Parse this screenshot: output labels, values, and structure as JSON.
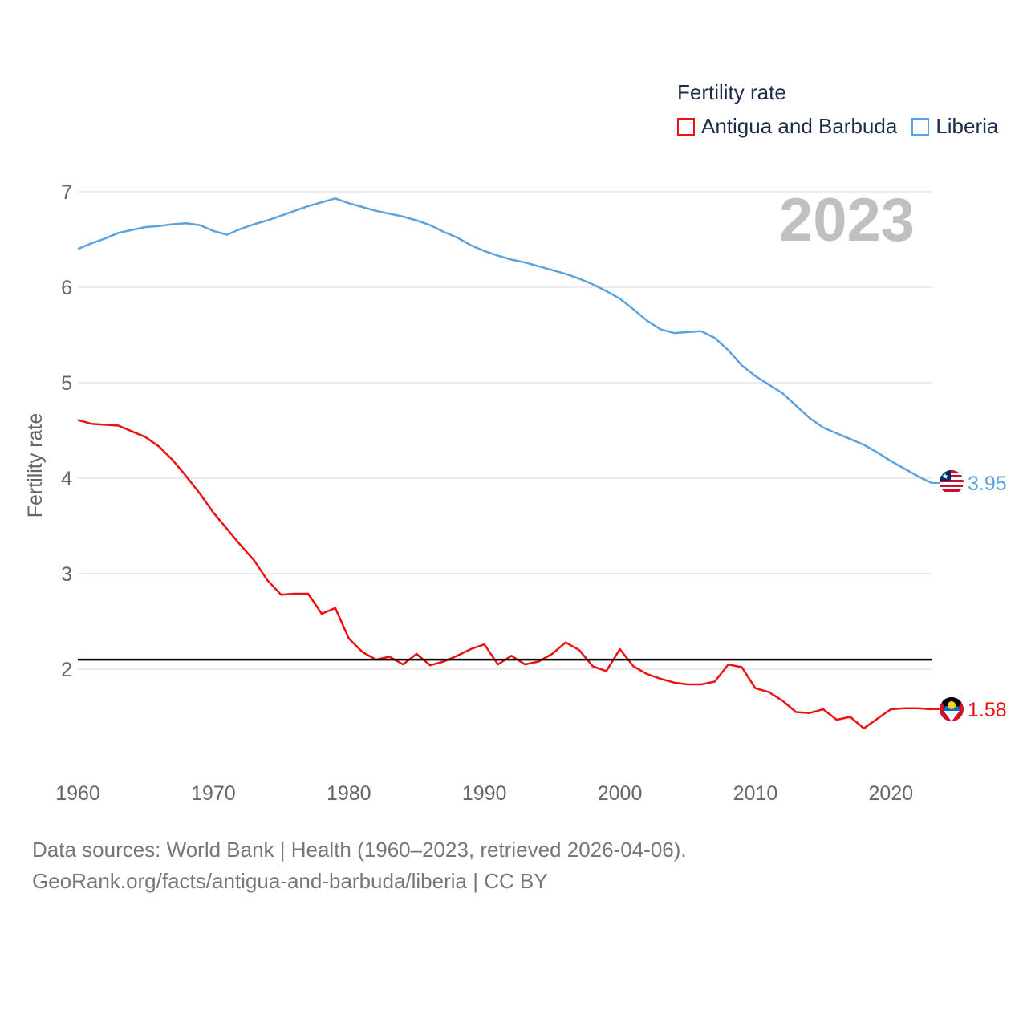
{
  "legend": {
    "title": "Fertility rate",
    "items": [
      {
        "label": "Antigua and Barbuda",
        "color": "#ee1111"
      },
      {
        "label": "Liberia",
        "color": "#5ba3e0"
      }
    ]
  },
  "footer": {
    "line1": "Data sources: World Bank | Health (1960–2023, retrieved 2026-04-06).",
    "line2": "GeoRank.org/facts/antigua-and-barbuda/liberia | CC BY"
  },
  "chart_data": {
    "type": "line",
    "title": "",
    "year_label": "2023",
    "ylabel": "Fertility rate",
    "xlabel": "",
    "xlim": [
      1960,
      2023
    ],
    "ylim": [
      1.0,
      7.2
    ],
    "yticks": [
      2,
      3,
      4,
      5,
      6,
      7
    ],
    "xticks": [
      1960,
      1970,
      1980,
      1990,
      2000,
      2010,
      2020
    ],
    "reference_line": 2.1,
    "years_start": 1960,
    "series": [
      {
        "name": "Liberia",
        "color": "#5ba3e0",
        "end_label": "3.95",
        "flag": "liberia-flag-icon",
        "values": [
          6.4,
          6.46,
          6.51,
          6.57,
          6.6,
          6.63,
          6.64,
          6.66,
          6.67,
          6.65,
          6.59,
          6.55,
          6.61,
          6.66,
          6.7,
          6.75,
          6.8,
          6.85,
          6.89,
          6.93,
          6.88,
          6.84,
          6.8,
          6.77,
          6.74,
          6.7,
          6.65,
          6.58,
          6.52,
          6.44,
          6.38,
          6.33,
          6.29,
          6.26,
          6.22,
          6.18,
          6.14,
          6.09,
          6.03,
          5.96,
          5.88,
          5.77,
          5.65,
          5.56,
          5.52,
          5.53,
          5.54,
          5.47,
          5.34,
          5.18,
          5.07,
          4.98,
          4.89,
          4.76,
          4.63,
          4.53,
          4.47,
          4.41,
          4.35,
          4.27,
          4.18,
          4.1,
          4.02,
          3.95
        ]
      },
      {
        "name": "Antigua and Barbuda",
        "color": "#ee1111",
        "end_label": "1.58",
        "flag": "antigua-flag-icon",
        "values": [
          4.61,
          4.57,
          4.56,
          4.55,
          4.49,
          4.43,
          4.33,
          4.19,
          4.02,
          3.84,
          3.64,
          3.47,
          3.3,
          3.14,
          2.93,
          2.78,
          2.79,
          2.79,
          2.58,
          2.64,
          2.32,
          2.18,
          2.1,
          2.13,
          2.05,
          2.16,
          2.04,
          2.08,
          2.14,
          2.21,
          2.26,
          2.05,
          2.14,
          2.05,
          2.08,
          2.16,
          2.28,
          2.2,
          2.03,
          1.98,
          2.21,
          2.03,
          1.95,
          1.9,
          1.86,
          1.84,
          1.84,
          1.87,
          2.05,
          2.02,
          1.8,
          1.76,
          1.67,
          1.55,
          1.54,
          1.58,
          1.47,
          1.5,
          1.38,
          1.48,
          1.58,
          1.59,
          1.59,
          1.58
        ]
      }
    ]
  }
}
